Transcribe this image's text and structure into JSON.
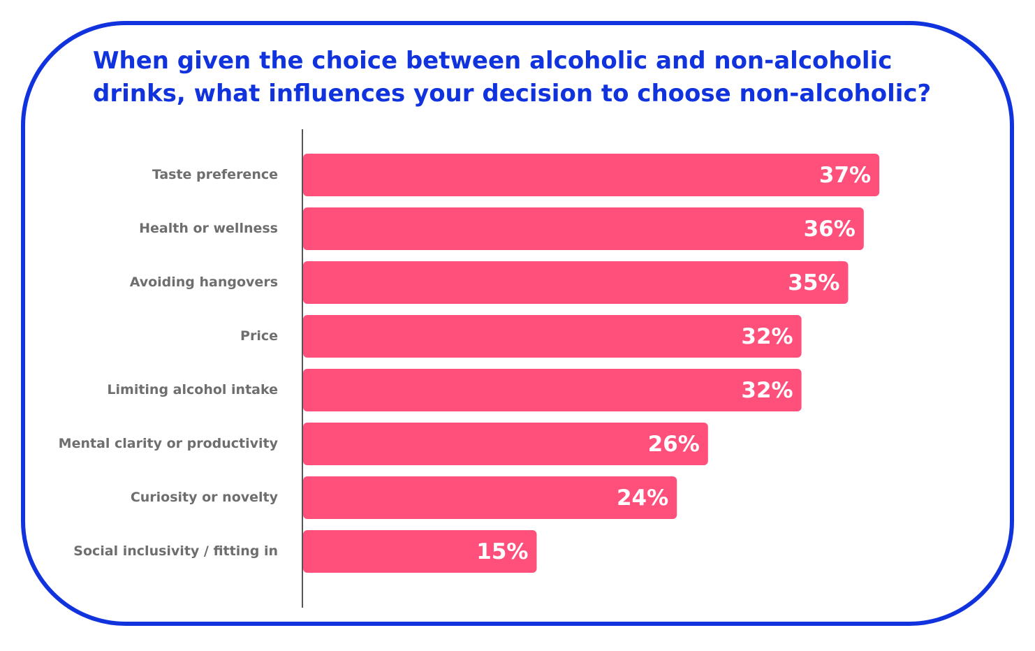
{
  "title_lines": [
    "When given the choice between alcoholic and non-alcoholic",
    "drinks, what influences your decision to choose non-alcoholic?"
  ],
  "colors": {
    "frame": "#1133dd",
    "title": "#1133dd",
    "bar": "#ff4f7b",
    "category_label": "#6e6e6e",
    "value_label": "#ffffff",
    "axis": "#555555"
  },
  "chart_data": {
    "type": "bar",
    "orientation": "horizontal",
    "title": "When given the choice between alcoholic and non-alcoholic drinks, what influences your decision to choose non-alcoholic?",
    "categories": [
      "Taste preference",
      "Health or wellness",
      "Avoiding hangovers",
      "Price",
      "Limiting alcohol intake",
      "Mental clarity or productivity",
      "Curiosity or novelty",
      "Social inclusivity / fitting in"
    ],
    "values": [
      37,
      36,
      35,
      32,
      32,
      26,
      24,
      15
    ],
    "value_labels": [
      "37%",
      "36%",
      "35%",
      "32%",
      "32%",
      "26%",
      "24%",
      "15%"
    ],
    "unit": "%",
    "grid": false,
    "legend": "none"
  }
}
